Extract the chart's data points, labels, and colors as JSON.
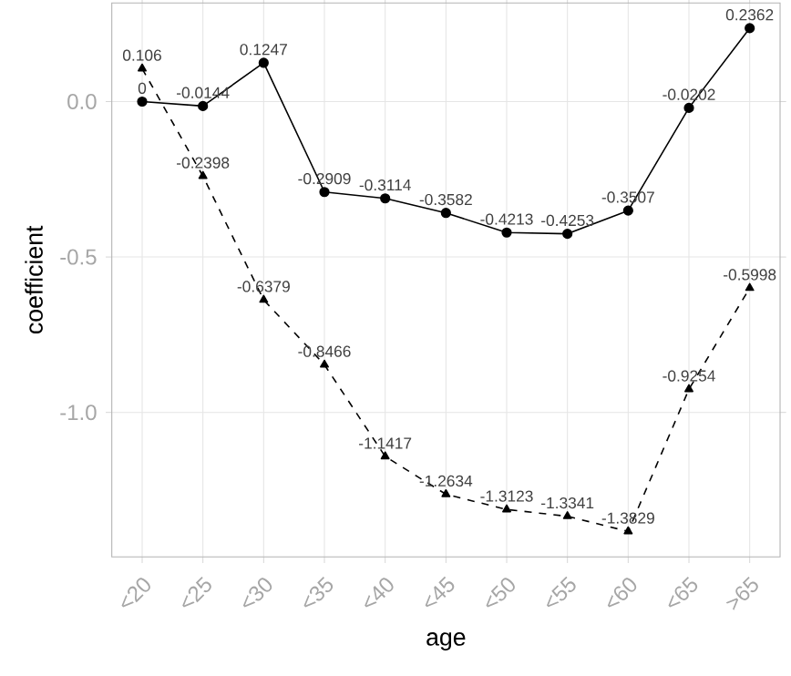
{
  "chart_data": {
    "type": "line",
    "xlabel": "age",
    "ylabel": "coefficient",
    "categories": [
      "<20",
      "<25",
      "<30",
      "<35",
      "<40",
      "<45",
      "<50",
      "<55",
      "<60",
      "<65",
      ">65"
    ],
    "series": [
      {
        "color": "#000000",
        "marker": "circle",
        "line_style": "solid",
        "values": [
          0,
          -0.0144,
          0.1247,
          -0.2909,
          -0.3114,
          -0.3582,
          -0.4213,
          -0.4253,
          -0.3507,
          -0.0202,
          0.2362
        ]
      },
      {
        "color": "#000000",
        "marker": "triangle",
        "line_style": "dashed",
        "values": [
          0.106,
          -0.2398,
          -0.6379,
          -0.8466,
          -1.1417,
          -1.2634,
          -1.3123,
          -1.3341,
          -1.3829,
          -0.9254,
          -0.5998
        ]
      }
    ],
    "ylim": [
      -1.465,
      0.317
    ],
    "yticks": [
      {
        "value": -1.0,
        "label": "-1.0"
      },
      {
        "value": -0.5,
        "label": "-0.5"
      },
      {
        "value": 0.0,
        "label": "0.0"
      }
    ],
    "grid": true,
    "data_labels": true
  }
}
